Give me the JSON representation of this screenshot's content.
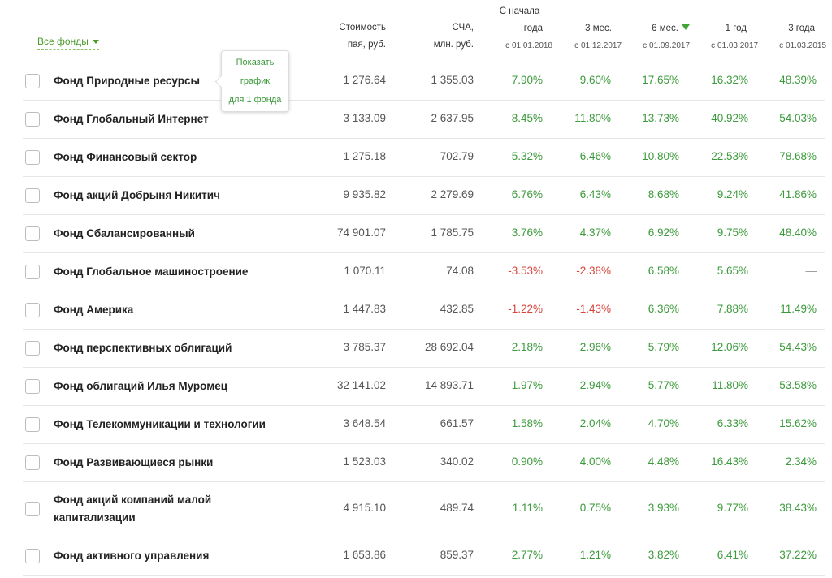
{
  "filter": {
    "label": "Все фонды"
  },
  "columns": {
    "price": {
      "line1": "Стоимость",
      "line2": "пая, руб."
    },
    "nav": {
      "line1": "СЧА,",
      "line2": "млн. руб."
    },
    "ytd": {
      "line1": "С начала",
      "line2": "года",
      "line3": "с 01.01.2018"
    },
    "m3": {
      "line1": "3 мес.",
      "line2": "с 01.12.2017"
    },
    "m6": {
      "line1": "6 мес.",
      "line2": "с 01.09.2017"
    },
    "y1": {
      "line1": "1 год",
      "line2": "с 01.03.2017"
    },
    "y3": {
      "line1": "3 года",
      "line2": "с 01.03.2015"
    }
  },
  "tooltip": {
    "line1": "Показать",
    "line2": "график",
    "line3": "для 1 фонда"
  },
  "funds": [
    {
      "name": "Фонд Природные ресурсы",
      "price": "1 276.64",
      "nav": "1 355.03",
      "ytd": "7.90%",
      "m3": "9.60%",
      "m6": "17.65%",
      "y1": "16.32%",
      "y3": "48.39%"
    },
    {
      "name": "Фонд Глобальный Интернет",
      "price": "3 133.09",
      "nav": "2 637.95",
      "ytd": "8.45%",
      "m3": "11.80%",
      "m6": "13.73%",
      "y1": "40.92%",
      "y3": "54.03%"
    },
    {
      "name": "Фонд Финансовый сектор",
      "price": "1 275.18",
      "nav": "702.79",
      "ytd": "5.32%",
      "m3": "6.46%",
      "m6": "10.80%",
      "y1": "22.53%",
      "y3": "78.68%"
    },
    {
      "name": "Фонд акций Добрыня Никитич",
      "price": "9 935.82",
      "nav": "2 279.69",
      "ytd": "6.76%",
      "m3": "6.43%",
      "m6": "8.68%",
      "y1": "9.24%",
      "y3": "41.86%"
    },
    {
      "name": "Фонд Сбалансированный",
      "price": "74 901.07",
      "nav": "1 785.75",
      "ytd": "3.76%",
      "m3": "4.37%",
      "m6": "6.92%",
      "y1": "9.75%",
      "y3": "48.40%"
    },
    {
      "name": "Фонд Глобальное машиностроение",
      "price": "1 070.11",
      "nav": "74.08",
      "ytd": "-3.53%",
      "m3": "-2.38%",
      "m6": "6.58%",
      "y1": "5.65%",
      "y3": "—"
    },
    {
      "name": "Фонд Америка",
      "price": "1 447.83",
      "nav": "432.85",
      "ytd": "-1.22%",
      "m3": "-1.43%",
      "m6": "6.36%",
      "y1": "7.88%",
      "y3": "11.49%"
    },
    {
      "name": "Фонд перспективных облигаций",
      "price": "3 785.37",
      "nav": "28 692.04",
      "ytd": "2.18%",
      "m3": "2.96%",
      "m6": "5.79%",
      "y1": "12.06%",
      "y3": "54.43%"
    },
    {
      "name": "Фонд облигаций Илья Муромец",
      "price": "32 141.02",
      "nav": "14 893.71",
      "ytd": "1.97%",
      "m3": "2.94%",
      "m6": "5.77%",
      "y1": "11.80%",
      "y3": "53.58%"
    },
    {
      "name": "Фонд Телекоммуникации и технологии",
      "price": "3 648.54",
      "nav": "661.57",
      "ytd": "1.58%",
      "m3": "2.04%",
      "m6": "4.70%",
      "y1": "6.33%",
      "y3": "15.62%"
    },
    {
      "name": "Фонд Развивающиеся рынки",
      "price": "1 523.03",
      "nav": "340.02",
      "ytd": "0.90%",
      "m3": "4.00%",
      "m6": "4.48%",
      "y1": "16.43%",
      "y3": "2.34%"
    },
    {
      "name": "Фонд акций компаний малой капитализации",
      "price": "4 915.10",
      "nav": "489.74",
      "ytd": "1.11%",
      "m3": "0.75%",
      "m6": "3.93%",
      "y1": "9.77%",
      "y3": "38.43%"
    },
    {
      "name": "Фонд активного управления",
      "price": "1 653.86",
      "nav": "859.37",
      "ytd": "2.77%",
      "m3": "1.21%",
      "m6": "3.82%",
      "y1": "6.41%",
      "y3": "37.22%"
    }
  ],
  "colors": {
    "positive": "#3b9a3b",
    "negative": "#d8443c",
    "accent": "#4c9a2a"
  }
}
